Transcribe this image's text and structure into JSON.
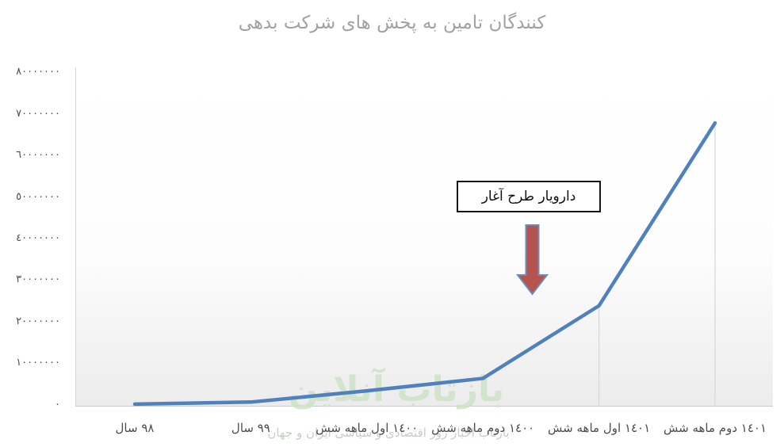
{
  "chart_data": {
    "type": "line",
    "title": "بدهی شرکت های پخش به تامین کنندگان",
    "categories": [
      "سال ٩٨",
      "سال ٩٩",
      "شش ماهه اول ١٤٠٠",
      "شش ماهه دوم ١٤٠٠",
      "شش ماهه اول ١٤٠١",
      "شش ماهه دوم ١٤٠١"
    ],
    "values": [
      300000,
      800000,
      3500000,
      6500000,
      24000000,
      68000000
    ],
    "xlabel": "",
    "ylabel": "",
    "ylim": [
      0,
      80000000
    ],
    "y_tick_step": 10000000,
    "grid": "off",
    "drop_lines_at": [
      4,
      5
    ],
    "annotation": "آغار طرح دارویار",
    "legend": "none"
  },
  "display": {
    "title": "بدهی‎ شرکت‎ های‎ پخش‎ به‎ تامین‎ کنندگان",
    "y_labels": [
      "٨٠٠٠٠٠٠٠",
      "٧٠٠٠٠٠٠٠",
      "٦٠٠٠٠٠٠٠",
      "٥٠٠٠٠٠٠٠",
      "٤٠٠٠٠٠٠٠",
      "٣٠٠٠٠٠٠٠",
      "٢٠٠٠٠٠٠٠",
      "١٠٠٠٠٠٠٠",
      "٠"
    ],
    "x_labels": [
      "سال‎ ٩٨",
      "سال‎ ٩٩",
      "شش‎ ماهه‎ اول‎ ١٤٠٠",
      "شش‎ ماهه‎ دوم‎ ١٤٠٠",
      "شش‎ ماهه‎ اول‎ ١٤٠١",
      "شش‎ ماهه‎ دوم‎ ١٤٠١"
    ],
    "annotation": "آغار‎ طرح‎ دارویار"
  },
  "watermark": {
    "logo": "بازتاب آنلاین",
    "caption": "بازتاب اخبار روز اقتصادی و سیاسی ایران و جهان"
  },
  "colors": {
    "line": "#4f81bd",
    "drop_line": "#d9d9d9",
    "arrow_fill": "#b5534f",
    "arrow_stroke": "#6b8cba",
    "title_text": "#a2a2a2",
    "axis_text": "#4d4d4d",
    "watermark_green": "#cfe3c8"
  }
}
